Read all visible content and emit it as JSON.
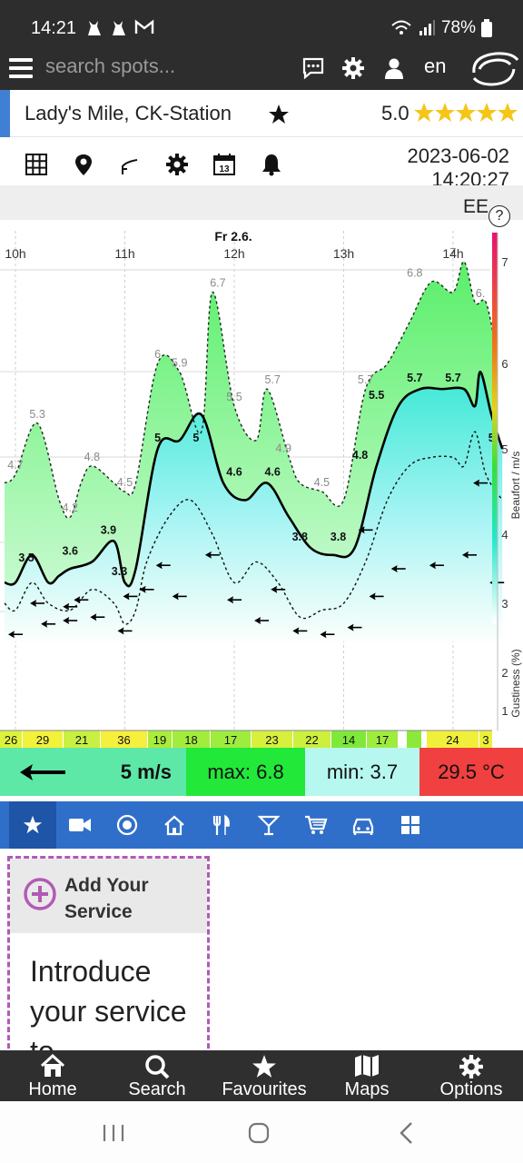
{
  "status_bar": {
    "time": "14:21",
    "battery": "78%"
  },
  "app_header": {
    "search_placeholder": "search spots...",
    "language": "en"
  },
  "spot": {
    "name": "Lady's Mile, CK-Station",
    "rating": "5.0"
  },
  "datetime": {
    "date": "2023-06-02",
    "time": "14:20:27"
  },
  "chart_header_text": "EE",
  "chart_data": {
    "type": "line",
    "title": "",
    "day_label": "Fr 2.6.",
    "x_ticks": [
      "10h",
      "11h",
      "12h",
      "13h",
      "14h"
    ],
    "ylabel": "Beaufort / m/s",
    "y2label": "Gustiness (%)",
    "y_ticks": [
      "1",
      "2",
      "3",
      "4",
      "5",
      "6",
      "7"
    ],
    "ylim": [
      0.4,
      7.6
    ],
    "series": [
      {
        "name": "gust",
        "points": [
          [
            9.9,
            4.6
          ],
          [
            10.0,
            4.7
          ],
          [
            10.2,
            5.3
          ],
          [
            10.4,
            4.4
          ],
          [
            10.5,
            4.2
          ],
          [
            10.6,
            4.6
          ],
          [
            10.7,
            4.8
          ],
          [
            10.9,
            4.6
          ],
          [
            11.0,
            4.5
          ],
          [
            11.1,
            4.6
          ],
          [
            11.3,
            6.0
          ],
          [
            11.5,
            5.9
          ],
          [
            11.7,
            5.2
          ],
          [
            11.8,
            6.7
          ],
          [
            12.0,
            5.5
          ],
          [
            12.2,
            5.1
          ],
          [
            12.3,
            5.7
          ],
          [
            12.5,
            4.9
          ],
          [
            12.6,
            4.6
          ],
          [
            12.8,
            4.5
          ],
          [
            13.0,
            4.4
          ],
          [
            13.2,
            5.7
          ],
          [
            13.4,
            6.0
          ],
          [
            13.6,
            6.4
          ],
          [
            13.8,
            6.8
          ],
          [
            14.0,
            6.7
          ],
          [
            14.1,
            7.0
          ],
          [
            14.2,
            6.6
          ],
          [
            14.3,
            6.6
          ],
          [
            14.4,
            6.1
          ]
        ]
      },
      {
        "name": "average",
        "points": [
          [
            9.9,
            3.3
          ],
          [
            10.0,
            3.3
          ],
          [
            10.15,
            3.7
          ],
          [
            10.3,
            3.3
          ],
          [
            10.4,
            3.4
          ],
          [
            10.5,
            3.5
          ],
          [
            10.7,
            3.6
          ],
          [
            10.9,
            3.9
          ],
          [
            11.0,
            3.3
          ],
          [
            11.1,
            3.5
          ],
          [
            11.3,
            5.0
          ],
          [
            11.5,
            5.1
          ],
          [
            11.7,
            5.4
          ],
          [
            11.9,
            4.6
          ],
          [
            12.1,
            4.4
          ],
          [
            12.3,
            4.6
          ],
          [
            12.5,
            4.2
          ],
          [
            12.7,
            3.8
          ],
          [
            12.9,
            3.7
          ],
          [
            13.1,
            3.8
          ],
          [
            13.3,
            4.8
          ],
          [
            13.5,
            5.5
          ],
          [
            13.7,
            5.7
          ],
          [
            13.9,
            5.7
          ],
          [
            14.1,
            5.7
          ],
          [
            14.2,
            5.5
          ],
          [
            14.25,
            5.9
          ],
          [
            14.35,
            5.4
          ],
          [
            14.45,
            5.0
          ]
        ]
      },
      {
        "name": "minimum",
        "points": [
          [
            9.9,
            3.0
          ],
          [
            10.0,
            2.9
          ],
          [
            10.15,
            3.3
          ],
          [
            10.3,
            3.0
          ],
          [
            10.5,
            2.9
          ],
          [
            10.7,
            3.2
          ],
          [
            10.9,
            3.0
          ],
          [
            11.0,
            2.7
          ],
          [
            11.1,
            2.9
          ],
          [
            11.2,
            3.6
          ],
          [
            11.4,
            4.2
          ],
          [
            11.6,
            4.4
          ],
          [
            11.8,
            4.0
          ],
          [
            12.0,
            3.3
          ],
          [
            12.2,
            3.6
          ],
          [
            12.4,
            3.3
          ],
          [
            12.6,
            2.8
          ],
          [
            12.8,
            2.9
          ],
          [
            13.0,
            3.0
          ],
          [
            13.2,
            3.6
          ],
          [
            13.4,
            4.4
          ],
          [
            13.6,
            4.8
          ],
          [
            13.8,
            4.9
          ],
          [
            14.0,
            4.9
          ],
          [
            14.1,
            4.8
          ],
          [
            14.2,
            5.2
          ],
          [
            14.3,
            4.7
          ],
          [
            14.45,
            4.4
          ]
        ]
      }
    ],
    "value_labels": [
      {
        "x": 10.0,
        "y": 4.7,
        "text": "4.7",
        "kind": "gust"
      },
      {
        "x": 10.2,
        "y": 5.3,
        "text": "5.3",
        "kind": "gust"
      },
      {
        "x": 10.5,
        "y": 4.2,
        "text": "4.2",
        "kind": "gust"
      },
      {
        "x": 10.7,
        "y": 4.8,
        "text": "4.8",
        "kind": "gust"
      },
      {
        "x": 11.0,
        "y": 4.5,
        "text": "4.5",
        "kind": "gust"
      },
      {
        "x": 11.3,
        "y": 6.0,
        "text": "6",
        "kind": "gust"
      },
      {
        "x": 11.5,
        "y": 5.9,
        "text": "5.9",
        "kind": "gust"
      },
      {
        "x": 11.85,
        "y": 6.7,
        "text": "6.7",
        "kind": "gust"
      },
      {
        "x": 12.0,
        "y": 5.5,
        "text": "5.5",
        "kind": "gust"
      },
      {
        "x": 12.35,
        "y": 5.7,
        "text": "5.7",
        "kind": "gust"
      },
      {
        "x": 12.45,
        "y": 4.9,
        "text": "4.9",
        "kind": "gust"
      },
      {
        "x": 12.8,
        "y": 4.5,
        "text": "4.5",
        "kind": "gust"
      },
      {
        "x": 13.2,
        "y": 5.7,
        "text": "5.7",
        "kind": "gust"
      },
      {
        "x": 13.65,
        "y": 6.8,
        "text": "6.8",
        "kind": "gust"
      },
      {
        "x": 14.0,
        "y": 7.0,
        "text": "7",
        "kind": "gust"
      },
      {
        "x": 14.25,
        "y": 6.6,
        "text": "6.",
        "kind": "gust"
      },
      {
        "x": 10.1,
        "y": 3.5,
        "text": "3.5",
        "kind": "avg"
      },
      {
        "x": 10.5,
        "y": 3.6,
        "text": "3.6",
        "kind": "avg"
      },
      {
        "x": 10.85,
        "y": 3.9,
        "text": "3.9",
        "kind": "avg"
      },
      {
        "x": 10.95,
        "y": 3.3,
        "text": "3.3",
        "kind": "avg"
      },
      {
        "x": 11.3,
        "y": 5.0,
        "text": "5",
        "kind": "avg"
      },
      {
        "x": 11.65,
        "y": 5.0,
        "text": "5",
        "kind": "avg"
      },
      {
        "x": 12.0,
        "y": 4.6,
        "text": "4.6",
        "kind": "avg"
      },
      {
        "x": 12.35,
        "y": 4.6,
        "text": "4.6",
        "kind": "avg"
      },
      {
        "x": 12.6,
        "y": 3.8,
        "text": "3.8",
        "kind": "avg"
      },
      {
        "x": 12.95,
        "y": 3.8,
        "text": "3.8",
        "kind": "avg"
      },
      {
        "x": 13.15,
        "y": 4.8,
        "text": "4.8",
        "kind": "avg"
      },
      {
        "x": 13.3,
        "y": 5.5,
        "text": "5.5",
        "kind": "avg"
      },
      {
        "x": 13.65,
        "y": 5.7,
        "text": "5.7",
        "kind": "avg"
      },
      {
        "x": 14.0,
        "y": 5.7,
        "text": "5.7",
        "kind": "avg"
      },
      {
        "x": 14.35,
        "y": 5.0,
        "text": "5",
        "kind": "avg"
      }
    ],
    "arrows": [
      [
        9.95,
        2.55
      ],
      [
        10.25,
        2.7
      ],
      [
        10.45,
        2.75
      ],
      [
        10.7,
        2.8
      ],
      [
        10.95,
        2.6
      ],
      [
        11.15,
        3.2
      ],
      [
        11.45,
        3.1
      ],
      [
        11.95,
        3.05
      ],
      [
        12.2,
        2.75
      ],
      [
        12.55,
        2.6
      ],
      [
        12.8,
        2.55
      ],
      [
        13.05,
        2.65
      ],
      [
        13.25,
        3.1
      ],
      [
        13.45,
        3.5
      ],
      [
        13.8,
        3.55
      ],
      [
        14.1,
        3.7
      ],
      [
        14.35,
        3.3
      ],
      [
        10.15,
        3.0
      ],
      [
        10.45,
        2.95
      ],
      [
        10.55,
        3.05
      ],
      [
        11.0,
        3.1
      ],
      [
        11.3,
        3.55
      ],
      [
        11.75,
        3.7
      ],
      [
        12.35,
        3.2
      ],
      [
        13.15,
        4.05
      ],
      [
        14.2,
        4.6
      ]
    ],
    "gustiness": {
      "values": [
        "26",
        "29",
        "21",
        "36",
        "19",
        "18",
        "17",
        "23",
        "22",
        "14",
        "17",
        "",
        "24",
        "3"
      ],
      "colors": [
        "#ddf23a",
        "#f3f23a",
        "#c8f041",
        "#f6ef3b",
        "#a9ec3b",
        "#a2ec3b",
        "#9eec3e",
        "#d6f03c",
        "#cdef3d",
        "#7fe83a",
        "#9eec3e",
        "#8ee83a",
        "#f0f03b",
        "#ebef3b"
      ]
    }
  },
  "summary": {
    "speed": "5 m/s",
    "max": "max: 6.8",
    "min": "min: 3.7",
    "temp": "29.5 °C"
  },
  "categories": [
    "favourites",
    "webcam",
    "spot",
    "accommodation",
    "restaurant",
    "bar",
    "shop",
    "car",
    "more"
  ],
  "service_card": {
    "add_label": "Add Your Service",
    "intro_text": "Introduce your service to"
  },
  "bottom_nav": {
    "home": "Home",
    "search": "Search",
    "favourites": "Favourites",
    "maps": "Maps",
    "options": "Options"
  },
  "colors": {
    "header_bg": "#2d2d2d",
    "accent_blue": "#3f7fd4",
    "tab_blue": "#2f6fc9",
    "gust_fill": "#7ff48a",
    "avg_fill": "#8fe8e8",
    "temp_red": "#f04040",
    "max_green": "#22e83a",
    "min_cyan": "#b6f8ef",
    "speed_green": "#5ee8a8"
  }
}
